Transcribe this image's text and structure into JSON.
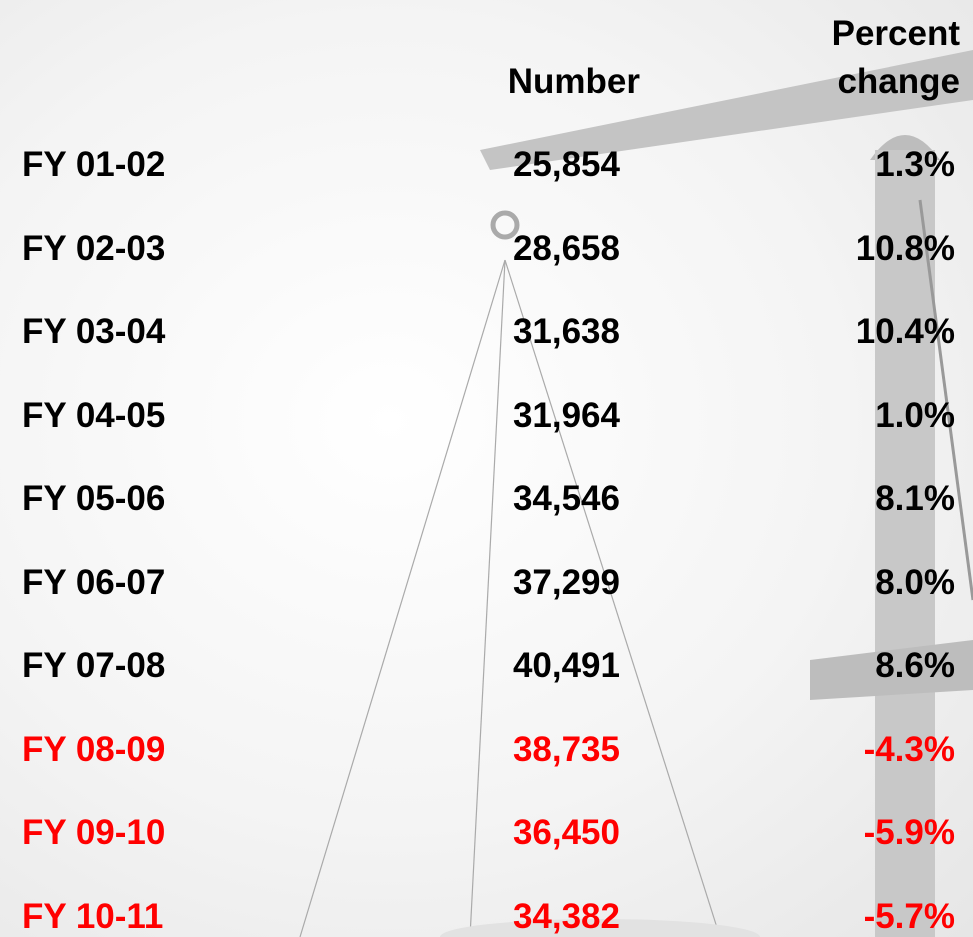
{
  "table": {
    "header": {
      "number": "Number",
      "percent_change": "Percent change"
    },
    "highlight_color": "#ff0000",
    "rows": [
      {
        "label": "FY 01-02",
        "number": "25,854",
        "percent_change": "1.3%",
        "highlighted": false
      },
      {
        "label": "FY 02-03",
        "number": "28,658",
        "percent_change": "10.8%",
        "highlighted": false
      },
      {
        "label": "FY 03-04",
        "number": "31,638",
        "percent_change": "10.4%",
        "highlighted": false
      },
      {
        "label": "FY 04-05",
        "number": "31,964",
        "percent_change": "1.0%",
        "highlighted": false
      },
      {
        "label": "FY 05-06",
        "number": "34,546",
        "percent_change": "8.1%",
        "highlighted": false
      },
      {
        "label": "FY 06-07",
        "number": "37,299",
        "percent_change": "8.0%",
        "highlighted": false
      },
      {
        "label": "FY 07-08",
        "number": "40,491",
        "percent_change": "8.6%",
        "highlighted": false
      },
      {
        "label": "FY 08-09",
        "number": "38,735",
        "percent_change": "-4.3%",
        "highlighted": true
      },
      {
        "label": "FY 09-10",
        "number": "36,450",
        "percent_change": "-5.9%",
        "highlighted": true
      },
      {
        "label": "FY 10-11",
        "number": "34,382",
        "percent_change": "-5.7%",
        "highlighted": true
      }
    ]
  }
}
